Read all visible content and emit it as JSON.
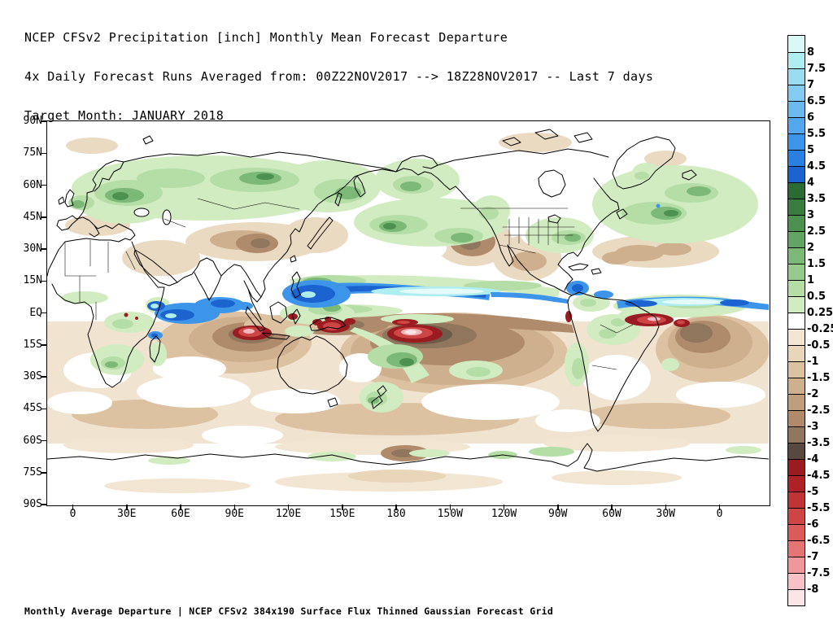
{
  "header": {
    "line1": "NCEP CFSv2 Precipitation [inch] Monthly Mean Forecast Departure",
    "line2": "4x Daily Forecast Runs Averaged from: 00Z22NOV2017 --> 18Z28NOV2017 -- Last 7 days",
    "line3": "Target Month: JANUARY 2018"
  },
  "footer": {
    "caption": "Monthly Average Departure | NCEP CFSv2 384x190 Surface Flux Thinned Gaussian Forecast Grid"
  },
  "map": {
    "lat_labels": [
      "90N",
      "75N",
      "60N",
      "45N",
      "30N",
      "15N",
      "EQ",
      "15S",
      "30S",
      "45S",
      "60S",
      "75S",
      "90S"
    ],
    "lon_labels": [
      "0",
      "30E",
      "60E",
      "90E",
      "120E",
      "150E",
      "180",
      "150W",
      "120W",
      "90W",
      "60W",
      "30W",
      "0"
    ]
  },
  "colorbar": {
    "labels": [
      "8",
      "7.5",
      "7",
      "6.5",
      "6",
      "5.5",
      "5",
      "4.5",
      "4",
      "3.5",
      "3",
      "2.5",
      "2",
      "1.5",
      "1",
      "0.5",
      "0.25",
      "-0.25",
      "-0.5",
      "-1",
      "-1.5",
      "-2",
      "-2.5",
      "-3",
      "-3.5",
      "-4",
      "-4.5",
      "-5",
      "-5.5",
      "-6",
      "-6.5",
      "-7",
      "-7.5",
      "-8"
    ],
    "colors": [
      "#D8F9F6",
      "#AEEDF0",
      "#9CDCF3",
      "#85CBF1",
      "#6CB9EF",
      "#55A7ED",
      "#3D95EA",
      "#2A80E2",
      "#1B63CE",
      "#2A6A33",
      "#3A7D41",
      "#4D9150",
      "#62A562",
      "#7CB976",
      "#97CB8C",
      "#B5DDA6",
      "#D2ECC2",
      "#FFFFFF",
      "#F2E6D3",
      "#E9D5B9",
      "#DDC2A2",
      "#CFB08E",
      "#C09D7B",
      "#AF8B6B",
      "#8F765C",
      "#57493D",
      "#9B1C20",
      "#AE2227",
      "#BF3434",
      "#CD4545",
      "#DA5B59",
      "#E57575",
      "#EF989B",
      "#F7C1C5",
      "#FCE5E7"
    ]
  },
  "chart_data": {
    "type": "heatmap",
    "title": "NCEP CFSv2 Precipitation [inch] Monthly Mean Forecast Departure",
    "subtitle": "4x Daily Forecast Runs Averaged from: 00Z22NOV2017 --> 18Z28NOV2017 -- Last 7 days",
    "target_month": "JANUARY 2018",
    "units": "inch",
    "projection": "cylindrical lat-lon world map, longitude wrapped ~15W to ~25E past 360",
    "xlabel_ticks": [
      "0",
      "30E",
      "60E",
      "90E",
      "120E",
      "150E",
      "180",
      "150W",
      "120W",
      "90W",
      "60W",
      "30W",
      "0"
    ],
    "ylabel_ticks": [
      "90N",
      "75N",
      "60N",
      "45N",
      "30N",
      "15N",
      "EQ",
      "15S",
      "30S",
      "45S",
      "60S",
      "75S",
      "90S"
    ],
    "colorbar_levels": [
      8,
      7.5,
      7,
      6.5,
      6,
      5.5,
      5,
      4.5,
      4,
      3.5,
      3,
      2.5,
      2,
      1.5,
      1,
      0.5,
      0.25,
      -0.25,
      -0.5,
      -1,
      -1.5,
      -2,
      -2.5,
      -3,
      -3.5,
      -4,
      -4.5,
      -5,
      -5.5,
      -6,
      -6.5,
      -7,
      -7.5,
      -8
    ],
    "legend_position": "right",
    "notable_features": [
      {
        "region": "Equatorial Pacific ITCZ band ~5-12N, 125E-95W",
        "value": "+4 to >+8 (blue/cyan positive departure)"
      },
      {
        "region": "Western Pacific / Philippines ~5-15N",
        "value": "+4 to +6 (deep blue)"
      },
      {
        "region": "Equatorial Atlantic ITCZ ~0-8N",
        "value": "+4 to >+8 (blue with pale cyan core)"
      },
      {
        "region": "Western equatorial Indian Ocean 40-75E",
        "value": "+4 to +6 (blue patches)"
      },
      {
        "region": "Central South Pacific 0-20S, 170E-130W",
        "value": "-3 to <-8 (dark brown with red/pink core)"
      },
      {
        "region": "South Indian Ocean 5-20S, 60-100E",
        "value": "-3 to <-8 (dark brown with red/pink core)"
      },
      {
        "region": "New Guinea / Coral Sea",
        "value": "<-4 (red patches)"
      },
      {
        "region": "NE Brazil coastal Atlantic ~0-8S",
        "value": "<-4 (red band)"
      },
      {
        "region": "SE Atlantic off SW Africa",
        "value": "-2 to <-4 (dark brown, small red spot)"
      },
      {
        "region": "Southern mid-latitude oceans 30-60S",
        "value": "-0.25 to -2 (broad tan band)"
      },
      {
        "region": "Northern Eurasia, North Atlantic, North Pacific",
        "value": "+0.25 to +2 (green)"
      },
      {
        "region": "Central Asia/Tibet, NE Pacific, SW US/Mexico, subtropical N Atlantic",
        "value": "-0.5 to -3 (tan/brown)"
      }
    ]
  }
}
